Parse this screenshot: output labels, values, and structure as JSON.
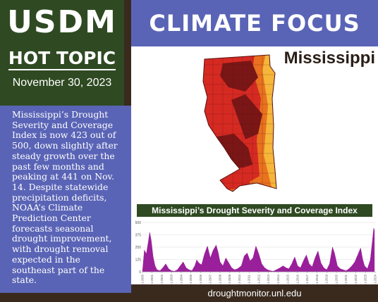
{
  "left_header": {
    "usdm": "USDM",
    "hot_topic": "HOT TOPIC",
    "date": "November 30, 2023"
  },
  "summary_text": "Mississippi’s Drought Severity and Coverage Index is now 423 out of 500, down slightly after steady growth over the past few months and peaking at 441 on Nov. 14. Despite statewide precipitation deficits, NOAA’s Climate Prediction Center forecasts seasonal drought improvement, with drought removal expected in the southeast part of the state.",
  "right_header": {
    "title": "CLIMATE FOCUS"
  },
  "map": {
    "state_name": "Mississippi",
    "colors": {
      "D1_moderate": "#f5b63a",
      "D2_severe": "#e8721f",
      "D3_extreme": "#d52a22",
      "D4_exceptional": "#7a1616",
      "county_lines": "#5a1010"
    }
  },
  "footer": {
    "url": "droughtmonitor.unl.edu"
  },
  "chart_data": {
    "type": "area",
    "title": "Mississippi’s Drought Severity and Coverage Index",
    "ylim": [
      0,
      500
    ],
    "y_ticks": [
      "500",
      "375",
      "250",
      "125",
      "0"
    ],
    "x_labels": [
      "1-1-2000",
      "1-1-2001",
      "1-1-2002",
      "1-1-2003",
      "1-1-2004",
      "1-1-2005",
      "1-1-2006",
      "1-1-2007",
      "1-1-2008",
      "1-1-2009",
      "1-1-2010",
      "1-1-2011",
      "1-1-2012",
      "1-1-2013",
      "1-1-2014",
      "1-1-2015",
      "1-1-2016",
      "1-1-2017",
      "1-1-2018",
      "1-1-2019",
      "1-1-2020",
      "1-1-2021",
      "1-1-2022",
      "1-1-2023",
      "1-1-2024"
    ],
    "color": "#9a1f9a",
    "x": [
      2000,
      2000.2,
      2000.4,
      2000.6,
      2000.75,
      2000.9,
      2001.1,
      2001.3,
      2001.5,
      2001.8,
      2002.1,
      2002.4,
      2002.7,
      2003,
      2003.3,
      2003.6,
      2003.9,
      2004.2,
      2004.5,
      2004.8,
      2005.1,
      2005.4,
      2005.6,
      2005.8,
      2006.1,
      2006.4,
      2006.7,
      2007,
      2007.3,
      2007.6,
      2007.8,
      2008,
      2008.3,
      2008.6,
      2008.9,
      2009.2,
      2009.5,
      2009.8,
      2010.2,
      2010.5,
      2010.8,
      2011.1,
      2011.4,
      2011.7,
      2012,
      2012.3,
      2012.6,
      2012.9,
      2013.2,
      2013.5,
      2013.8,
      2014.2,
      2014.5,
      2014.8,
      2015.1,
      2015.4,
      2015.7,
      2016,
      2016.3,
      2016.6,
      2016.9,
      2017.2,
      2017.5,
      2017.8,
      2018.1,
      2018.4,
      2018.7,
      2019,
      2019.3,
      2019.6,
      2019.8,
      2020.1,
      2020.4,
      2020.7,
      2021,
      2021.3,
      2021.6,
      2021.9,
      2022.2,
      2022.5,
      2022.7,
      2022.9,
      2023.2,
      2023.5,
      2023.7,
      2023.85,
      2023.92
    ],
    "values": [
      0,
      220,
      180,
      300,
      400,
      320,
      150,
      60,
      20,
      10,
      40,
      80,
      30,
      10,
      5,
      20,
      60,
      100,
      40,
      20,
      10,
      60,
      120,
      90,
      70,
      180,
      260,
      140,
      220,
      270,
      200,
      100,
      60,
      140,
      90,
      40,
      20,
      30,
      60,
      160,
      190,
      110,
      140,
      260,
      180,
      80,
      40,
      20,
      10,
      5,
      20,
      40,
      60,
      40,
      30,
      80,
      150,
      60,
      40,
      110,
      170,
      80,
      50,
      140,
      210,
      90,
      40,
      20,
      80,
      250,
      190,
      60,
      30,
      20,
      10,
      30,
      60,
      100,
      170,
      240,
      130,
      60,
      30,
      120,
      300,
      441,
      423
    ]
  }
}
